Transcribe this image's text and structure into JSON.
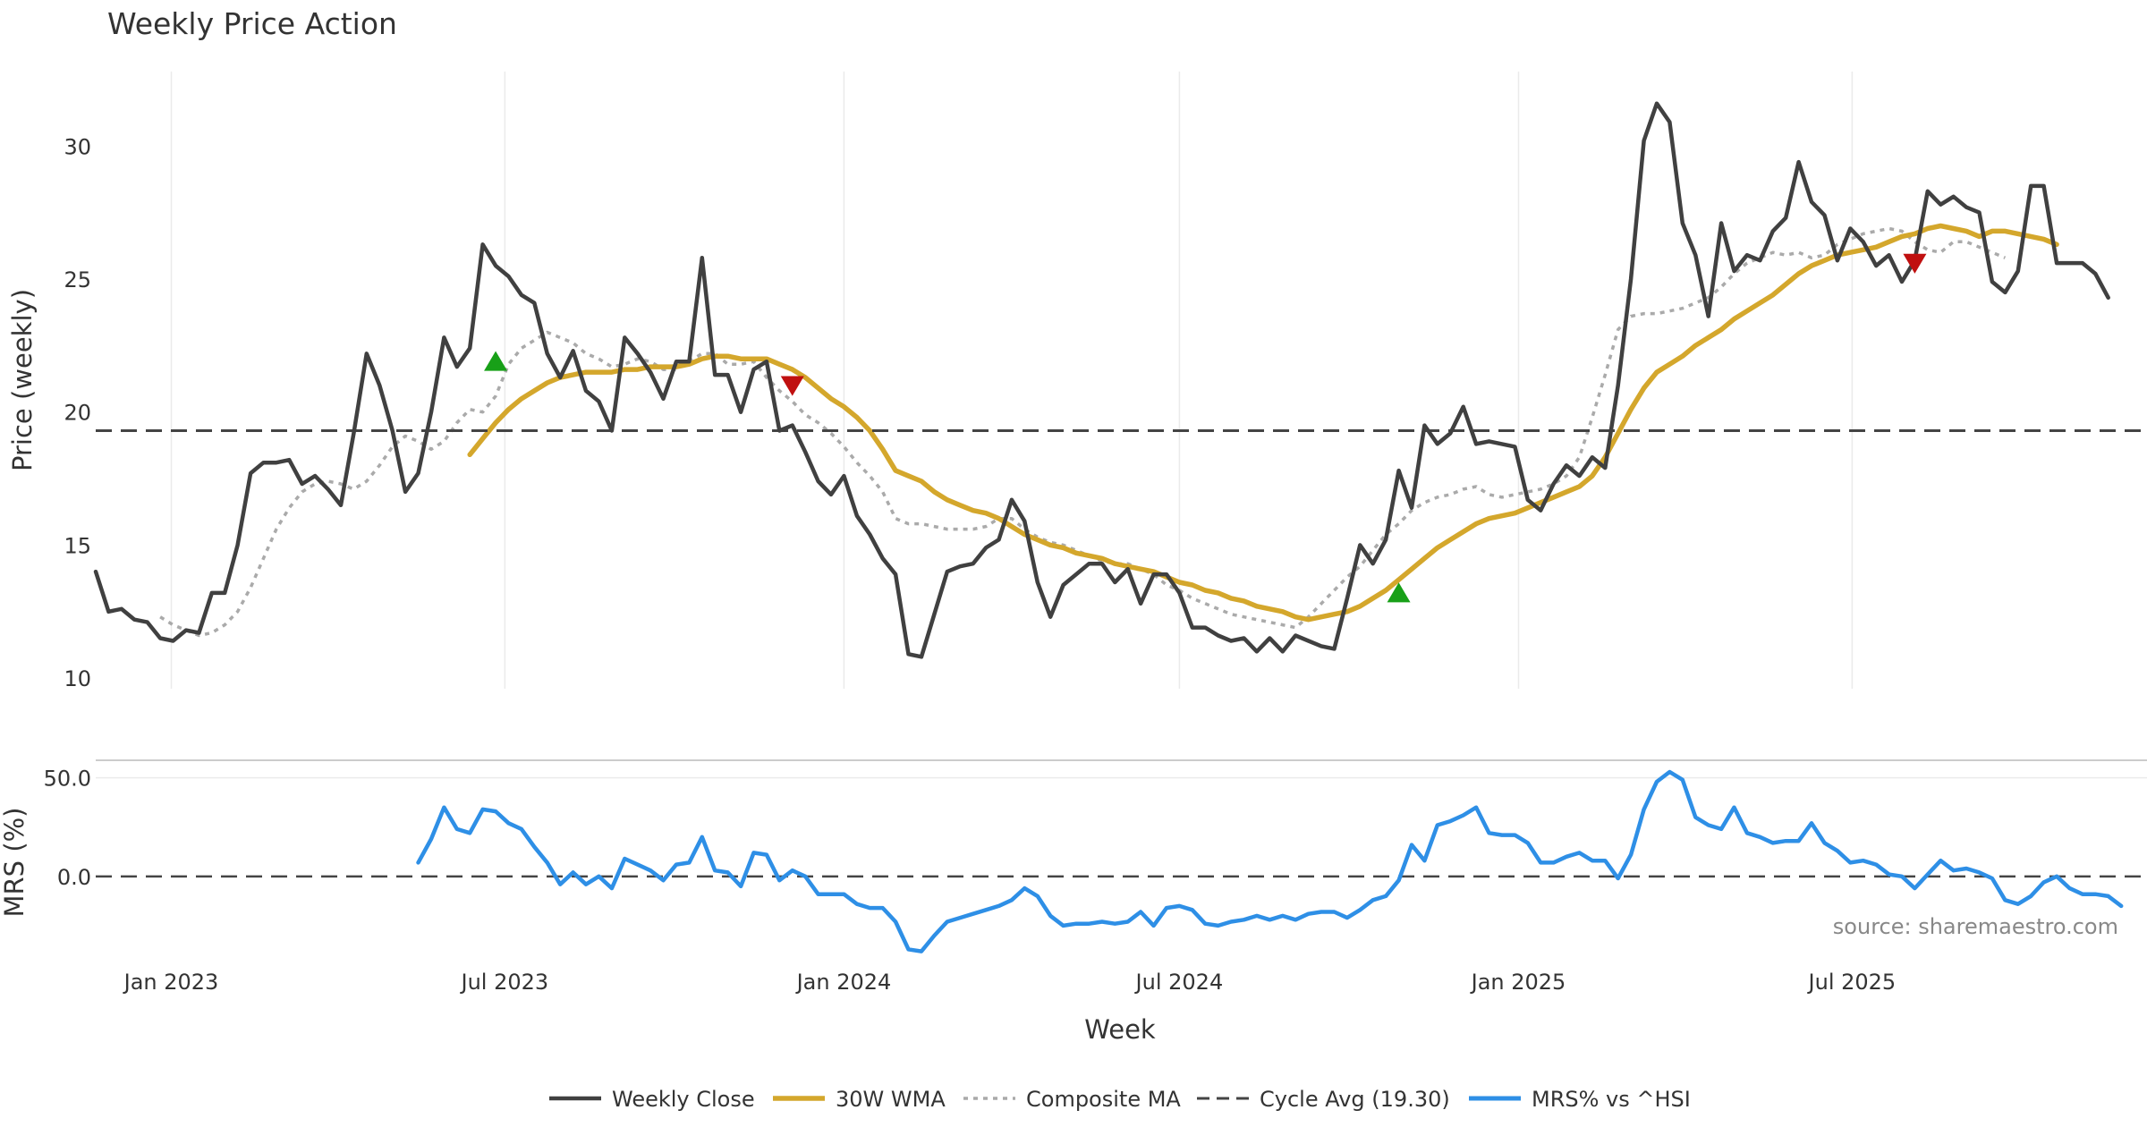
{
  "colors": {
    "close": "#404040",
    "wma": "#D4A72C",
    "composite": "#AAAAAA",
    "cycle": "#444444",
    "mrs": "#2E8FE6",
    "buy": "#18A018",
    "sell": "#C01010",
    "grid": "#EBEBEB",
    "source": "#888888"
  },
  "source_text": "source: sharemaestro.com",
  "chart_data": [
    {
      "type": "line",
      "panel": "price",
      "title": "Weekly Price Action",
      "xlabel": "Week",
      "ylabel": "Price (weekly)",
      "x_start": "2022-11-21",
      "x_step_days": 7,
      "x_range": [
        "2022-11-21",
        "2025-12-08"
      ],
      "xticks": [
        {
          "date": "2023-01-01",
          "label": "Jan 2023"
        },
        {
          "date": "2023-07-01",
          "label": "Jul 2023"
        },
        {
          "date": "2024-01-01",
          "label": "Jan 2024"
        },
        {
          "date": "2024-07-01",
          "label": "Jul 2024"
        },
        {
          "date": "2025-01-01",
          "label": "Jan 2025"
        },
        {
          "date": "2025-07-01",
          "label": "Jul 2025"
        }
      ],
      "ylim": [
        9.6,
        32.8
      ],
      "yticks": [
        10,
        15,
        20,
        25,
        30
      ],
      "grid": "vertical",
      "legend_position": "bottom",
      "series": [
        {
          "name": "Weekly Close",
          "style": "solid",
          "values": [
            14.0,
            12.5,
            12.6,
            12.2,
            12.1,
            11.5,
            11.4,
            11.8,
            11.7,
            13.2,
            13.2,
            15.0,
            17.7,
            18.1,
            18.1,
            18.2,
            17.3,
            17.6,
            17.1,
            16.5,
            19.2,
            22.2,
            21.0,
            19.3,
            17.0,
            17.7,
            20.0,
            22.8,
            21.7,
            22.4,
            26.3,
            25.5,
            25.1,
            24.4,
            24.1,
            22.2,
            21.3,
            22.3,
            20.8,
            20.4,
            19.3,
            22.8,
            22.2,
            21.5,
            20.5,
            21.9,
            21.9,
            25.8,
            21.4,
            21.4,
            20.0,
            21.6,
            21.9,
            19.3,
            19.5,
            18.5,
            17.4,
            16.9,
            17.6,
            16.1,
            15.4,
            14.5,
            13.9,
            10.9,
            10.8,
            12.4,
            14.0,
            14.2,
            14.3,
            14.9,
            15.2,
            16.7,
            15.9,
            13.6,
            12.3,
            13.5,
            13.9,
            14.3,
            14.3,
            13.6,
            14.1,
            12.8,
            13.9,
            13.9,
            13.2,
            11.9,
            11.9,
            11.6,
            11.4,
            11.5,
            11.0,
            11.5,
            11.0,
            11.6,
            11.4,
            11.2,
            11.1,
            13.0,
            15.0,
            14.3,
            15.2,
            17.8,
            16.4,
            19.5,
            18.8,
            19.2,
            20.2,
            18.8,
            18.9,
            18.8,
            18.7,
            16.7,
            16.3,
            17.3,
            18.0,
            17.6,
            18.3,
            17.9,
            21.0,
            25.0,
            30.2,
            31.6,
            30.9,
            27.1,
            25.9,
            23.6,
            27.1,
            25.3,
            25.9,
            25.7,
            26.8,
            27.3,
            29.4,
            27.9,
            27.4,
            25.7,
            26.9,
            26.4,
            25.5,
            25.9,
            24.9,
            25.7,
            28.3,
            27.8,
            28.1,
            27.7,
            27.5,
            24.9,
            24.5,
            25.3,
            28.5,
            28.5,
            25.6,
            25.6,
            25.6,
            25.2,
            24.3
          ]
        },
        {
          "name": "30W WMA",
          "style": "solid",
          "start_index": 29,
          "values": [
            18.4,
            19.0,
            19.6,
            20.1,
            20.5,
            20.8,
            21.1,
            21.3,
            21.4,
            21.5,
            21.5,
            21.5,
            21.6,
            21.6,
            21.7,
            21.7,
            21.7,
            21.8,
            22.0,
            22.1,
            22.1,
            22.0,
            22.0,
            22.0,
            21.8,
            21.6,
            21.3,
            20.9,
            20.5,
            20.2,
            19.8,
            19.3,
            18.6,
            17.8,
            17.6,
            17.4,
            17.0,
            16.7,
            16.5,
            16.3,
            16.2,
            16.0,
            15.7,
            15.4,
            15.2,
            15.0,
            14.9,
            14.7,
            14.6,
            14.5,
            14.3,
            14.2,
            14.1,
            14.0,
            13.8,
            13.6,
            13.5,
            13.3,
            13.2,
            13.0,
            12.9,
            12.7,
            12.6,
            12.5,
            12.3,
            12.2,
            12.3,
            12.4,
            12.5,
            12.7,
            13.0,
            13.3,
            13.7,
            14.1,
            14.5,
            14.9,
            15.2,
            15.5,
            15.8,
            16.0,
            16.1,
            16.2,
            16.4,
            16.6,
            16.8,
            17.0,
            17.2,
            17.6,
            18.3,
            19.2,
            20.1,
            20.9,
            21.5,
            21.8,
            22.1,
            22.5,
            22.8,
            23.1,
            23.5,
            23.8,
            24.1,
            24.4,
            24.8,
            25.2,
            25.5,
            25.7,
            25.9,
            26.0,
            26.1,
            26.2,
            26.4,
            26.6,
            26.7,
            26.9,
            27.0,
            26.9,
            26.8,
            26.6,
            26.8,
            26.8,
            26.7,
            26.6,
            26.5,
            26.3
          ]
        },
        {
          "name": "Composite MA",
          "style": "dotted",
          "start_index": 5,
          "values": [
            12.3,
            12.0,
            11.8,
            11.6,
            11.7,
            12.0,
            12.5,
            13.4,
            14.5,
            15.6,
            16.4,
            17.0,
            17.3,
            17.4,
            17.3,
            17.1,
            17.4,
            18.0,
            18.7,
            19.1,
            18.9,
            18.6,
            18.9,
            19.6,
            20.1,
            20.0,
            20.6,
            21.8,
            22.4,
            22.7,
            23.0,
            22.8,
            22.6,
            22.2,
            22.0,
            21.7,
            21.8,
            22.0,
            21.9,
            21.6,
            21.6,
            21.9,
            22.2,
            22.2,
            21.8,
            21.8,
            21.9,
            21.3,
            20.8,
            20.4,
            19.9,
            19.6,
            19.2,
            18.7,
            18.1,
            17.6,
            17.0,
            16.0,
            15.8,
            15.8,
            15.7,
            15.6,
            15.6,
            15.6,
            15.7,
            16.0,
            16.0,
            15.6,
            15.3,
            15.1,
            15.0,
            14.8,
            14.6,
            14.4,
            14.3,
            14.3,
            14.1,
            13.9,
            13.5,
            13.3,
            13.0,
            12.8,
            12.6,
            12.4,
            12.3,
            12.2,
            12.1,
            12.0,
            11.9,
            12.3,
            12.8,
            13.3,
            13.8,
            14.2,
            14.8,
            15.4,
            15.8,
            16.3,
            16.6,
            16.8,
            16.9,
            17.1,
            17.2,
            16.9,
            16.8,
            16.9,
            17.0,
            17.1,
            17.3,
            17.6,
            18.3,
            19.8,
            21.4,
            23.1,
            23.6,
            23.7,
            23.7,
            23.8,
            23.9,
            24.1,
            24.3,
            24.7,
            25.2,
            25.6,
            25.8,
            26.0,
            25.9,
            26.0,
            25.8,
            25.9,
            26.3,
            26.5,
            26.7,
            26.8,
            26.9,
            26.8,
            26.4,
            26.1,
            26.0,
            26.4,
            26.4,
            26.2,
            26.0,
            25.8
          ]
        },
        {
          "name": "Cycle Avg (19.30)",
          "style": "dashed",
          "constant": 19.3
        }
      ],
      "markers": [
        {
          "kind": "buy",
          "shape": "triangle-up",
          "index": 31,
          "value": 21.9
        },
        {
          "kind": "sell",
          "shape": "triangle-down",
          "index": 54,
          "value": 21.0
        },
        {
          "kind": "buy",
          "shape": "triangle-up",
          "index": 101,
          "value": 13.2
        },
        {
          "kind": "sell",
          "shape": "triangle-down",
          "index": 141,
          "value": 25.6
        }
      ]
    },
    {
      "type": "line",
      "panel": "mrs",
      "ylabel": "MRS (%)",
      "ylim": [
        -40,
        58
      ],
      "yticks": [
        0,
        50
      ],
      "ytick_labels": [
        "0.0",
        "50.0"
      ],
      "zero_line": "dashed",
      "series": [
        {
          "name": "MRS% vs ^HSI",
          "style": "solid",
          "start_index": 25,
          "values": [
            7,
            19,
            35,
            24,
            22,
            34,
            33,
            27,
            24,
            15,
            7,
            -4,
            2,
            -4,
            0,
            -6,
            9,
            6,
            3,
            -2,
            6,
            7,
            20,
            3,
            2,
            -5,
            12,
            11,
            -2,
            3,
            0,
            -9,
            -9,
            -9,
            -14,
            -16,
            -16,
            -23,
            -37,
            -38,
            -30,
            -23,
            -21,
            -19,
            -17,
            -15,
            -12,
            -6,
            -10,
            -20,
            -25,
            -24,
            -24,
            -23,
            -24,
            -23,
            -18,
            -25,
            -16,
            -15,
            -17,
            -24,
            -25,
            -23,
            -22,
            -20,
            -22,
            -20,
            -22,
            -19,
            -18,
            -18,
            -21,
            -17,
            -12,
            -10,
            -2,
            16,
            8,
            26,
            28,
            31,
            35,
            22,
            21,
            21,
            17,
            7,
            7,
            10,
            12,
            8,
            8,
            -1,
            11,
            34,
            48,
            53,
            49,
            30,
            26,
            24,
            35,
            22,
            20,
            17,
            18,
            18,
            27,
            17,
            13,
            7,
            8,
            6,
            1,
            0,
            -6,
            1,
            8,
            3,
            4,
            2,
            -1,
            -12,
            -14,
            -10,
            -3,
            0,
            -6,
            -9,
            -9,
            -10,
            -15
          ]
        }
      ]
    }
  ]
}
